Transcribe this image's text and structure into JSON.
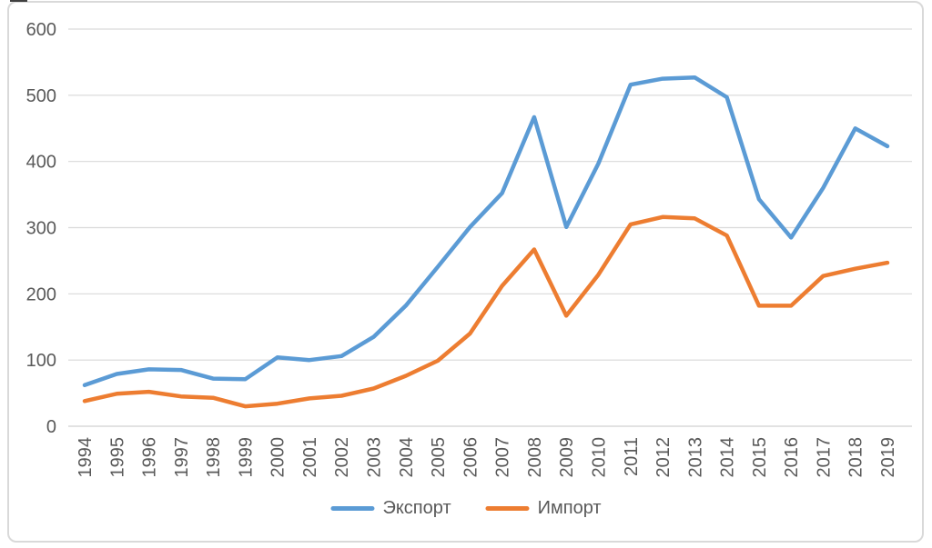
{
  "chart_data": {
    "type": "line",
    "title": "",
    "xlabel": "",
    "ylabel": "",
    "x": [
      "1994",
      "1995",
      "1996",
      "1997",
      "1998",
      "1999",
      "2000",
      "2001",
      "2002",
      "2003",
      "2004",
      "2005",
      "2006",
      "2007",
      "2008",
      "2009",
      "2010",
      "2011",
      "2012",
      "2013",
      "2014",
      "2015",
      "2016",
      "2017",
      "2018",
      "2019"
    ],
    "series": [
      {
        "key": "export",
        "name": "Экспорт",
        "color": "#5B9BD5",
        "values": [
          62,
          79,
          86,
          85,
          72,
          71,
          104,
          100,
          106,
          135,
          182,
          241,
          301,
          352,
          467,
          301,
          397,
          516,
          525,
          527,
          497,
          343,
          285,
          360,
          450,
          423
        ]
      },
      {
        "key": "import",
        "name": "Импорт",
        "color": "#ED7D31",
        "values": [
          38,
          49,
          52,
          45,
          43,
          30,
          34,
          42,
          46,
          57,
          76,
          99,
          140,
          212,
          267,
          167,
          229,
          305,
          316,
          314,
          288,
          182,
          182,
          227,
          238,
          247
        ]
      }
    ],
    "ylim": [
      0,
      600
    ],
    "ytick_step": 100,
    "yticks": [
      "0",
      "100",
      "200",
      "300",
      "400",
      "500",
      "600"
    ],
    "grid": true,
    "gridline_color": "#D9D9D9",
    "axis_label_color": "#595959",
    "legend_position": "bottom",
    "legend_text_color": "#595959",
    "chart_border_color": "#D9D9D9",
    "background_color": "#FFFFFF"
  }
}
